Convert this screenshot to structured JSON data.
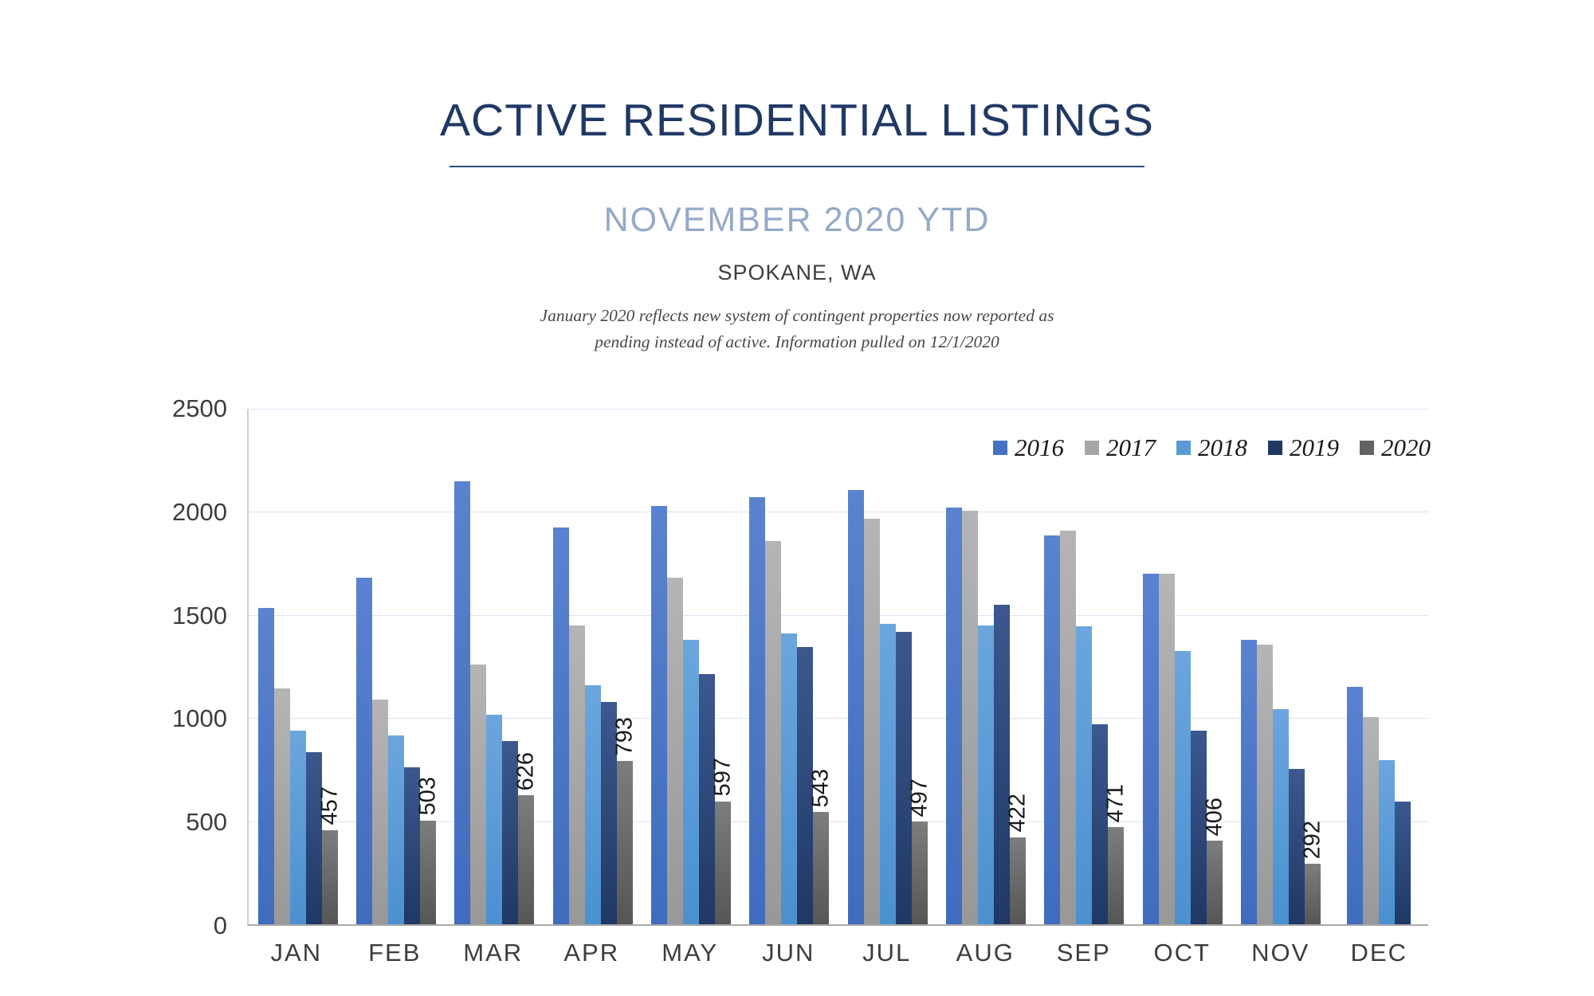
{
  "header": {
    "title": "ACTIVE RESIDENTIAL LISTINGS",
    "subtitle": "NOVEMBER 2020 YTD",
    "location": "SPOKANE, WA",
    "note_line1": "January 2020 reflects new system of contingent properties now reported as",
    "note_line2": "pending instead of active.  Information pulled on 12/1/2020"
  },
  "colors": {
    "title_navy": "#203864",
    "subtitle_blue": "#94aac8",
    "gridline": "#dbe4f4",
    "series_2016": "#4472c4",
    "series_2017": "#a6a6a6",
    "series_2018": "#5b9bd5",
    "series_2019": "#1f3864",
    "series_2020": "#636363"
  },
  "chart_data": {
    "type": "bar",
    "title": "ACTIVE RESIDENTIAL LISTINGS",
    "subtitle": "NOVEMBER 2020 YTD",
    "categories": [
      "JAN",
      "FEB",
      "MAR",
      "APR",
      "MAY",
      "JUN",
      "JUL",
      "AUG",
      "SEP",
      "OCT",
      "NOV",
      "DEC"
    ],
    "series": [
      {
        "name": "2016",
        "color": "#4472c4",
        "values": [
          1535,
          1680,
          2150,
          1925,
          2030,
          2070,
          2105,
          2020,
          1885,
          1700,
          1380,
          1150
        ],
        "data_labels": false
      },
      {
        "name": "2017",
        "color": "#a6a6a6",
        "values": [
          1145,
          1090,
          1260,
          1450,
          1680,
          1860,
          1965,
          2005,
          1910,
          1700,
          1355,
          1005
        ],
        "data_labels": false
      },
      {
        "name": "2018",
        "color": "#5b9bd5",
        "values": [
          940,
          915,
          1015,
          1160,
          1380,
          1410,
          1455,
          1450,
          1445,
          1325,
          1045,
          795
        ],
        "data_labels": false
      },
      {
        "name": "2019",
        "color": "#1f3864",
        "values": [
          835,
          760,
          890,
          1080,
          1215,
          1345,
          1420,
          1550,
          970,
          940,
          755,
          595
        ],
        "data_labels": false
      },
      {
        "name": "2020",
        "color": "#636363",
        "values": [
          457,
          503,
          626,
          793,
          597,
          543,
          497,
          422,
          471,
          406,
          292,
          null
        ],
        "data_labels": true
      }
    ],
    "xlabel": "",
    "ylabel": "",
    "ylim": [
      0,
      2500
    ],
    "ytick_interval": 500,
    "yticks": [
      "0",
      "500",
      "1000",
      "1500",
      "2000",
      "2500"
    ],
    "grid": true,
    "legend_position": "top-right"
  }
}
